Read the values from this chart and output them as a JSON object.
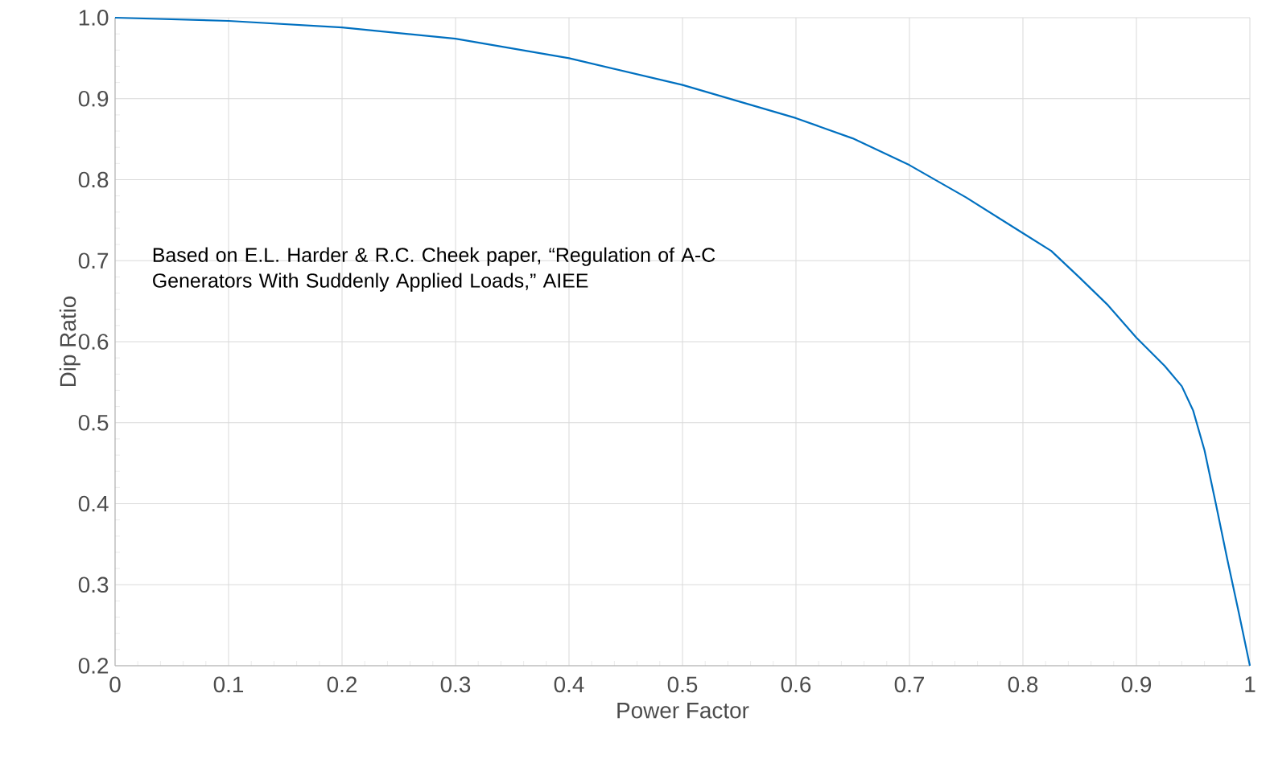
{
  "chart_data": {
    "type": "line",
    "xlabel": "Power Factor",
    "ylabel": "Dip Ratio",
    "x": [
      0,
      0.1,
      0.2,
      0.3,
      0.4,
      0.5,
      0.6,
      0.65,
      0.7,
      0.75,
      0.8,
      0.825,
      0.85,
      0.875,
      0.9,
      0.925,
      0.94,
      0.95,
      0.96,
      0.97,
      0.98,
      0.99,
      1.0
    ],
    "series": [
      {
        "color": "#0070c0",
        "values": [
          1.0,
          0.996,
          0.988,
          0.974,
          0.95,
          0.917,
          0.876,
          0.851,
          0.818,
          0.778,
          0.734,
          0.712,
          0.679,
          0.645,
          0.605,
          0.57,
          0.545,
          0.515,
          0.466,
          0.4,
          0.332,
          0.267,
          0.2
        ]
      }
    ],
    "xlim": [
      0,
      1
    ],
    "ylim": [
      0.2,
      1.0
    ],
    "xticks": [
      0,
      0.1,
      0.2,
      0.3,
      0.4,
      0.5,
      0.6,
      0.7,
      0.8,
      0.9,
      1
    ],
    "yticks": [
      0.2,
      0.3,
      0.4,
      0.5,
      0.6,
      0.7,
      0.8,
      0.9,
      {
        "value": 1.0,
        "label": "1.0"
      }
    ],
    "grid": true,
    "marker": "none",
    "line_style": "solid",
    "annotations": [
      "Based on E.L. Harder & R.C. Cheek paper, “Regulation of A-C Generators With Suddenly Applied Loads,” AIEE"
    ]
  }
}
